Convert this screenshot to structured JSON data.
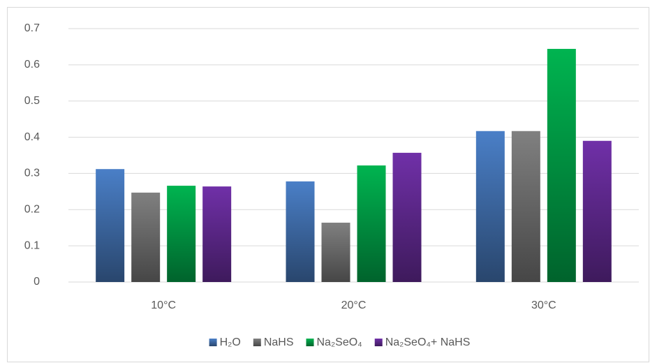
{
  "chart_data": {
    "type": "bar",
    "categories": [
      "10°C",
      "20°C",
      "30°C"
    ],
    "series": [
      {
        "name": "H₂O",
        "color": "#4a7fc7",
        "values": [
          0.312,
          0.278,
          0.417
        ]
      },
      {
        "name": "NaHS",
        "color": "#808080",
        "values": [
          0.247,
          0.164,
          0.417
        ]
      },
      {
        "name": "Na₂SeO₄",
        "color": "#00b450",
        "values": [
          0.266,
          0.322,
          0.644
        ]
      },
      {
        "name": "Na₂SeO₄+ NaHS",
        "color": "#7030a8",
        "values": [
          0.264,
          0.357,
          0.39
        ]
      }
    ],
    "ylim": [
      0,
      0.7
    ],
    "yticks": [
      0,
      0.1,
      0.2,
      0.3,
      0.4,
      0.5,
      0.6,
      0.7
    ],
    "grid": true,
    "legend": "bottom"
  }
}
